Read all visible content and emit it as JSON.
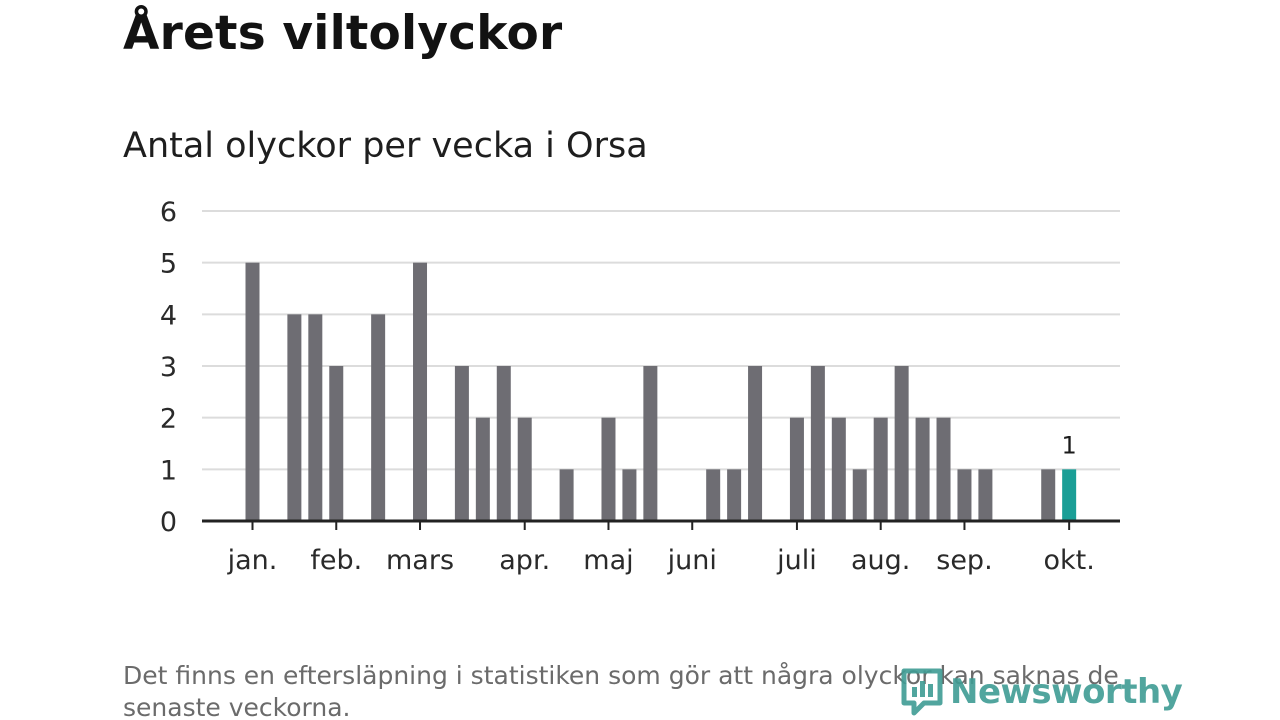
{
  "title": "Årets viltolyckor",
  "subtitle": "Antal olyckor per vecka i Orsa",
  "footnote": "Det finns en eftersläpning i statistiken som gör att några olyckor kan saknas de senaste veckorna.",
  "logo_text": "Newsworthy",
  "colors": {
    "bar": "#6e6d73",
    "highlight": "#1a9e96",
    "grid": "#dcdcdc",
    "axis": "#222222",
    "logo": "#3f9c94"
  },
  "chart_data": {
    "type": "bar",
    "title": "Antal olyckor per vecka i Orsa",
    "xlabel": "",
    "ylabel": "",
    "ylim": [
      0,
      6
    ],
    "yticks": [
      0,
      1,
      2,
      3,
      4,
      5,
      6
    ],
    "grid": true,
    "week_start": 1,
    "week_end": 42,
    "values": [
      {
        "week": 1,
        "value": 5
      },
      {
        "week": 3,
        "value": 4
      },
      {
        "week": 4,
        "value": 4
      },
      {
        "week": 5,
        "value": 3
      },
      {
        "week": 7,
        "value": 4
      },
      {
        "week": 9,
        "value": 5
      },
      {
        "week": 11,
        "value": 3
      },
      {
        "week": 12,
        "value": 2
      },
      {
        "week": 13,
        "value": 3
      },
      {
        "week": 14,
        "value": 2
      },
      {
        "week": 16,
        "value": 1
      },
      {
        "week": 18,
        "value": 2
      },
      {
        "week": 19,
        "value": 1
      },
      {
        "week": 20,
        "value": 3
      },
      {
        "week": 23,
        "value": 1
      },
      {
        "week": 24,
        "value": 1
      },
      {
        "week": 25,
        "value": 3
      },
      {
        "week": 27,
        "value": 2
      },
      {
        "week": 28,
        "value": 3
      },
      {
        "week": 29,
        "value": 2
      },
      {
        "week": 30,
        "value": 1
      },
      {
        "week": 31,
        "value": 2
      },
      {
        "week": 32,
        "value": 3
      },
      {
        "week": 33,
        "value": 2
      },
      {
        "week": 34,
        "value": 2
      },
      {
        "week": 35,
        "value": 1
      },
      {
        "week": 36,
        "value": 1
      },
      {
        "week": 39,
        "value": 1
      },
      {
        "week": 40,
        "value": 1,
        "highlight": true,
        "label": "1"
      }
    ],
    "months": [
      {
        "label": "jan.",
        "week": 1
      },
      {
        "label": "feb.",
        "week": 5
      },
      {
        "label": "mars",
        "week": 9
      },
      {
        "label": "apr.",
        "week": 14
      },
      {
        "label": "maj",
        "week": 18
      },
      {
        "label": "juni",
        "week": 22
      },
      {
        "label": "juli",
        "week": 27
      },
      {
        "label": "aug.",
        "week": 31
      },
      {
        "label": "sep.",
        "week": 35
      },
      {
        "label": "okt.",
        "week": 40
      }
    ]
  }
}
